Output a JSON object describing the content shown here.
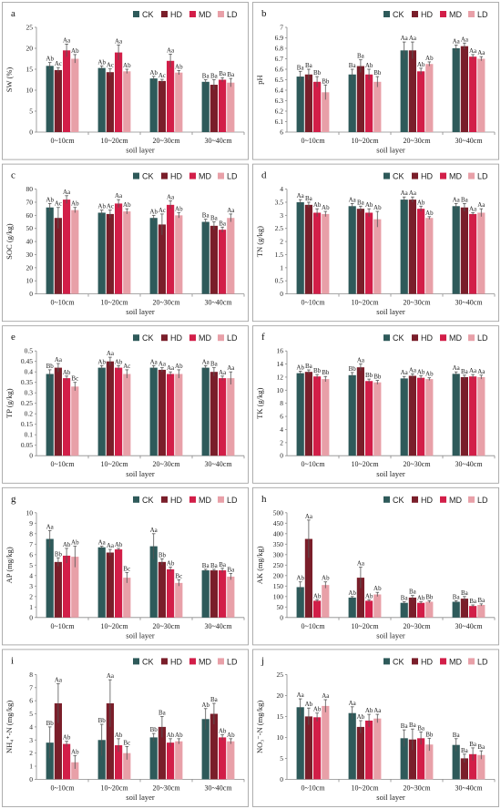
{
  "colors": {
    "CK": "#2e5a5a",
    "HD": "#7a1e2a",
    "MD": "#d21e48",
    "LD": "#e8a0a8"
  },
  "legend": [
    "CK",
    "HD",
    "MD",
    "LD"
  ],
  "xlabel": "soil layer",
  "chart_data": [
    {
      "type": "bar",
      "letter": "a",
      "ylabel": "SW (%)",
      "ylim": [
        0,
        25
      ],
      "yticks": [
        0,
        5,
        10,
        15,
        20,
        25
      ],
      "categories": [
        "0~10cm",
        "10~20cm",
        "20~30cm",
        "30~40cm"
      ],
      "series": [
        {
          "name": "CK",
          "values": [
            15.8,
            15.3,
            12.8,
            12.0
          ],
          "errors": [
            0.8,
            0.5,
            0.5,
            0.5
          ],
          "sig": [
            "Ab",
            "Ab",
            "Ab",
            "Ba"
          ]
        },
        {
          "name": "HD",
          "values": [
            14.8,
            14.3,
            12.2,
            11.3
          ],
          "errors": [
            0.6,
            0.8,
            0.4,
            1.2
          ],
          "sig": [
            "Ac",
            "Ac",
            "Ac",
            "Ba"
          ]
        },
        {
          "name": "MD",
          "values": [
            19.5,
            19.0,
            17.0,
            12.5
          ],
          "errors": [
            1.5,
            1.8,
            1.6,
            0.5
          ],
          "sig": [
            "Aa",
            "Aa",
            "Aa",
            "Ba"
          ]
        },
        {
          "name": "LD",
          "values": [
            17.5,
            14.5,
            14.2,
            11.8
          ],
          "errors": [
            1.0,
            0.5,
            0.5,
            1.0
          ],
          "sig": [
            "Ab",
            "Ab",
            "Ab",
            "Ba"
          ]
        }
      ]
    },
    {
      "type": "bar",
      "letter": "b",
      "ylabel": "pH",
      "ylim": [
        6,
        7
      ],
      "yticks": [
        6,
        6.1,
        6.2,
        6.3,
        6.4,
        6.5,
        6.6,
        6.7,
        6.8,
        6.9,
        7
      ],
      "categories": [
        "0~10cm",
        "10~20cm",
        "20~30cm",
        "30~40cm"
      ],
      "series": [
        {
          "name": "CK",
          "values": [
            6.53,
            6.55,
            6.78,
            6.8
          ],
          "errors": [
            0.05,
            0.05,
            0.08,
            0.03
          ],
          "sig": [
            "Ba",
            "Ba",
            "Aa",
            "Aa"
          ]
        },
        {
          "name": "HD",
          "values": [
            6.55,
            6.63,
            6.78,
            6.82
          ],
          "errors": [
            0.05,
            0.06,
            0.08,
            0.03
          ],
          "sig": [
            "Ba",
            "Ba",
            "Aa",
            "Aa"
          ]
        },
        {
          "name": "MD",
          "values": [
            6.48,
            6.55,
            6.58,
            6.72
          ],
          "errors": [
            0.05,
            0.05,
            0.03,
            0.02
          ],
          "sig": [
            "Bb",
            "Ab",
            "Ab",
            "Aa"
          ]
        },
        {
          "name": "LD",
          "values": [
            6.38,
            6.48,
            6.65,
            6.7
          ],
          "errors": [
            0.07,
            0.05,
            0.02,
            0.02
          ],
          "sig": [
            "Bb",
            "Bb",
            "Ab",
            "Aa"
          ]
        }
      ]
    },
    {
      "type": "bar",
      "letter": "c",
      "ylabel": "SOC (g/kg)",
      "ylim": [
        0,
        80
      ],
      "yticks": [
        0,
        10,
        20,
        30,
        40,
        50,
        60,
        70,
        80
      ],
      "categories": [
        "0~10cm",
        "10~20cm",
        "20~30cm",
        "30~40cm"
      ],
      "series": [
        {
          "name": "CK",
          "values": [
            66,
            62,
            58,
            55
          ],
          "errors": [
            3,
            2,
            2,
            2
          ],
          "sig": [
            "Ab",
            "Ab",
            "Ab",
            "Ba"
          ]
        },
        {
          "name": "HD",
          "values": [
            58,
            61,
            53,
            52
          ],
          "errors": [
            8,
            3,
            8,
            3
          ],
          "sig": [
            "Ac",
            "Ac",
            "Ac",
            "Ba"
          ]
        },
        {
          "name": "MD",
          "values": [
            72,
            69,
            68,
            49
          ],
          "errors": [
            3,
            3,
            3,
            2
          ],
          "sig": [
            "Aa",
            "Aa",
            "Aa",
            "Ba"
          ]
        },
        {
          "name": "LD",
          "values": [
            64,
            63,
            60,
            58
          ],
          "errors": [
            2,
            2,
            2,
            3
          ],
          "sig": [
            "Ab",
            "Ab",
            "Ab",
            "Aa"
          ]
        }
      ]
    },
    {
      "type": "bar",
      "letter": "d",
      "ylabel": "TN (g/kg)",
      "ylim": [
        0,
        4
      ],
      "yticks": [
        0,
        0.5,
        1,
        1.5,
        2,
        2.5,
        3,
        3.5,
        4
      ],
      "categories": [
        "0~10cm",
        "10~20cm",
        "20~30cm",
        "30~40cm"
      ],
      "series": [
        {
          "name": "CK",
          "values": [
            3.5,
            3.35,
            3.6,
            3.35
          ],
          "errors": [
            0.1,
            0.1,
            0.1,
            0.1
          ],
          "sig": [
            "Aa",
            "Aa",
            "Aa",
            "Aa"
          ]
        },
        {
          "name": "HD",
          "values": [
            3.4,
            3.25,
            3.6,
            3.3
          ],
          "errors": [
            0.1,
            0.1,
            0.1,
            0.15
          ],
          "sig": [
            "Ba",
            "Ba",
            "Aa",
            "Ba"
          ]
        },
        {
          "name": "MD",
          "values": [
            3.1,
            3.1,
            3.25,
            3.05
          ],
          "errors": [
            0.15,
            0.15,
            0.1,
            0.05
          ],
          "sig": [
            "Ab",
            "Ab",
            "Ab",
            "Aa"
          ]
        },
        {
          "name": "LD",
          "values": [
            3.05,
            2.85,
            2.9,
            3.1
          ],
          "errors": [
            0.1,
            0.3,
            0.05,
            0.15
          ],
          "sig": [
            "Ab",
            "Ab",
            "Ab",
            "Aa"
          ]
        }
      ]
    },
    {
      "type": "bar",
      "letter": "e",
      "ylabel": "TP (g/kg)",
      "ylim": [
        0,
        0.5
      ],
      "yticks": [
        0,
        0.05,
        0.1,
        0.15,
        0.2,
        0.25,
        0.3,
        0.35,
        0.4,
        0.45,
        0.5
      ],
      "categories": [
        "0~10cm",
        "10~20cm",
        "20~30cm",
        "30~40cm"
      ],
      "series": [
        {
          "name": "CK",
          "values": [
            0.39,
            0.42,
            0.42,
            0.42
          ],
          "errors": [
            0.02,
            0.01,
            0.01,
            0.01
          ],
          "sig": [
            "Bb",
            "Ab",
            "Aa",
            "Aa"
          ]
        },
        {
          "name": "HD",
          "values": [
            0.42,
            0.45,
            0.41,
            0.4
          ],
          "errors": [
            0.02,
            0.02,
            0.01,
            0.02
          ],
          "sig": [
            "Aa",
            "Aa",
            "Aa",
            "Ba"
          ]
        },
        {
          "name": "MD",
          "values": [
            0.37,
            0.42,
            0.39,
            0.37
          ],
          "errors": [
            0.01,
            0.01,
            0.01,
            0.01
          ],
          "sig": [
            "Ab",
            "Ab",
            "Aa",
            "Aa"
          ]
        },
        {
          "name": "LD",
          "values": [
            0.33,
            0.39,
            0.39,
            0.37
          ],
          "errors": [
            0.02,
            0.02,
            0.02,
            0.03
          ],
          "sig": [
            "Bc",
            "Ac",
            "Ab",
            "Aa"
          ]
        }
      ]
    },
    {
      "type": "bar",
      "letter": "f",
      "ylabel": "TK (g/kg)",
      "ylim": [
        0,
        16
      ],
      "yticks": [
        0,
        2,
        4,
        6,
        8,
        10,
        12,
        14,
        16
      ],
      "categories": [
        "0~10cm",
        "10~20cm",
        "20~30cm",
        "30~40cm"
      ],
      "series": [
        {
          "name": "CK",
          "values": [
            12.6,
            12.3,
            11.8,
            12.5
          ],
          "errors": [
            0.3,
            0.4,
            0.3,
            0.3
          ],
          "sig": [
            "Ab",
            "Bb",
            "Aa",
            "Aa"
          ]
        },
        {
          "name": "HD",
          "values": [
            12.8,
            13.5,
            12.2,
            12.0
          ],
          "errors": [
            0.3,
            0.5,
            0.3,
            0.3
          ],
          "sig": [
            "Ba",
            "Aa",
            "Aa",
            "Ba"
          ]
        },
        {
          "name": "MD",
          "values": [
            12.1,
            11.4,
            11.9,
            12.1
          ],
          "errors": [
            0.3,
            0.3,
            0.3,
            0.3
          ],
          "sig": [
            "Bb",
            "Bb",
            "Ab",
            "Aa"
          ]
        },
        {
          "name": "LD",
          "values": [
            11.7,
            11.2,
            11.7,
            12.0
          ],
          "errors": [
            0.4,
            0.3,
            0.2,
            0.3
          ],
          "sig": [
            "Bb",
            "Bb",
            "Ab",
            "Aa"
          ]
        }
      ]
    },
    {
      "type": "bar",
      "letter": "g",
      "ylabel": "AP (mg/kg)",
      "ylim": [
        0,
        10
      ],
      "yticks": [
        0,
        1,
        2,
        3,
        4,
        5,
        6,
        7,
        8,
        9,
        10
      ],
      "categories": [
        "0~10cm",
        "10~20cm",
        "20~30cm",
        "30~40cm"
      ],
      "series": [
        {
          "name": "CK",
          "values": [
            7.5,
            6.7,
            6.8,
            4.5
          ],
          "errors": [
            0.8,
            0.1,
            1.2,
            0.1
          ],
          "sig": [
            "Aa",
            "Aa",
            "Aa",
            "Ba"
          ]
        },
        {
          "name": "HD",
          "values": [
            5.3,
            6.2,
            5.3,
            4.5
          ],
          "errors": [
            0.4,
            0.3,
            0.3,
            0.1
          ],
          "sig": [
            "Bb",
            "Aa",
            "Bb",
            "Ba"
          ]
        },
        {
          "name": "MD",
          "values": [
            5.9,
            6.5,
            4.6,
            4.5
          ],
          "errors": [
            0.7,
            0.1,
            0.2,
            0.2
          ],
          "sig": [
            "Ab",
            "Ab",
            "Ab",
            "Ba"
          ]
        },
        {
          "name": "LD",
          "values": [
            5.8,
            3.8,
            3.3,
            3.9
          ],
          "errors": [
            1.0,
            0.5,
            0.3,
            0.3
          ],
          "sig": [
            "Ab",
            "Bc",
            "Bc",
            "Ba"
          ]
        }
      ]
    },
    {
      "type": "bar",
      "letter": "h",
      "ylabel": "AK (mg/kg)",
      "ylim": [
        0,
        500
      ],
      "yticks": [
        0,
        50,
        100,
        150,
        200,
        250,
        300,
        350,
        400,
        450,
        500
      ],
      "categories": [
        "0~10cm",
        "10~20cm",
        "20~30cm",
        "30~40cm"
      ],
      "series": [
        {
          "name": "CK",
          "values": [
            145,
            95,
            70,
            75
          ],
          "errors": [
            25,
            5,
            5,
            5
          ],
          "sig": [
            "Ab",
            "Ab",
            "Ba",
            "Ba"
          ]
        },
        {
          "name": "HD",
          "values": [
            375,
            190,
            95,
            90
          ],
          "errors": [
            90,
            50,
            10,
            10
          ],
          "sig": [
            "Aa",
            "Aa",
            "Ba",
            "Ba"
          ]
        },
        {
          "name": "MD",
          "values": [
            80,
            80,
            70,
            55
          ],
          "errors": [
            5,
            5,
            5,
            5
          ],
          "sig": [
            "Ab",
            "Ab",
            "Ab",
            "Ba"
          ]
        },
        {
          "name": "LD",
          "values": [
            155,
            110,
            75,
            60
          ],
          "errors": [
            15,
            10,
            5,
            5
          ],
          "sig": [
            "Ab",
            "Ab",
            "Bb",
            "Ba"
          ]
        }
      ]
    },
    {
      "type": "bar",
      "letter": "i",
      "ylabel": "NH₄⁺-N (mg/kg)",
      "ylim": [
        0,
        8
      ],
      "yticks": [
        0,
        1,
        2,
        3,
        4,
        5,
        6,
        7,
        8
      ],
      "categories": [
        "0~10cm",
        "10~20cm",
        "20~30cm",
        "30~40cm"
      ],
      "series": [
        {
          "name": "CK",
          "values": [
            2.8,
            3.0,
            3.2,
            4.6
          ],
          "errors": [
            1.2,
            1.2,
            0.3,
            0.8
          ],
          "sig": [
            "Bb",
            "Bb",
            "Bb",
            "Ab"
          ]
        },
        {
          "name": "HD",
          "values": [
            5.8,
            5.8,
            4.0,
            5.0
          ],
          "errors": [
            1.5,
            1.8,
            0.8,
            0.8
          ],
          "sig": [
            "Aa",
            "Aa",
            "Ba",
            "Ba"
          ]
        },
        {
          "name": "MD",
          "values": [
            2.7,
            2.6,
            2.8,
            3.2
          ],
          "errors": [
            0.2,
            0.5,
            0.3,
            0.2
          ],
          "sig": [
            "Ab",
            "Ab",
            "Ab",
            "Ab"
          ]
        },
        {
          "name": "LD",
          "values": [
            1.3,
            2.0,
            2.9,
            2.9
          ],
          "errors": [
            0.5,
            0.5,
            0.2,
            0.2
          ],
          "sig": [
            "Ab",
            "Bc",
            "Ab",
            "Ab"
          ]
        }
      ]
    },
    {
      "type": "bar",
      "letter": "j",
      "ylabel": "NO₃⁻-N (mg/kg)",
      "ylim": [
        0,
        25
      ],
      "yticks": [
        0,
        5,
        10,
        15,
        20,
        25
      ],
      "categories": [
        "0~10cm",
        "10~20cm",
        "20~30cm",
        "30~40cm"
      ],
      "series": [
        {
          "name": "CK",
          "values": [
            17.2,
            15.8,
            9.8,
            8.2
          ],
          "errors": [
            2.0,
            1.5,
            2.0,
            1.5
          ],
          "sig": [
            "Aa",
            "Aa",
            "Ba",
            "Ba"
          ]
        },
        {
          "name": "HD",
          "values": [
            15.0,
            12.5,
            9.5,
            5.0
          ],
          "errors": [
            2.0,
            1.5,
            2.5,
            1.0
          ],
          "sig": [
            "Ab",
            "Ab",
            "Ba",
            "Ba"
          ]
        },
        {
          "name": "MD",
          "values": [
            14.8,
            14.0,
            9.8,
            6.0
          ],
          "errors": [
            1.0,
            1.5,
            1.5,
            1.5
          ],
          "sig": [
            "Ab",
            "Ab",
            "Ba",
            "Ba"
          ]
        },
        {
          "name": "LD",
          "values": [
            17.5,
            14.5,
            8.3,
            5.8
          ],
          "errors": [
            1.5,
            1.0,
            1.5,
            1.0
          ],
          "sig": [
            "Aa",
            "Aa",
            "Bb",
            "Ba"
          ]
        }
      ]
    }
  ]
}
